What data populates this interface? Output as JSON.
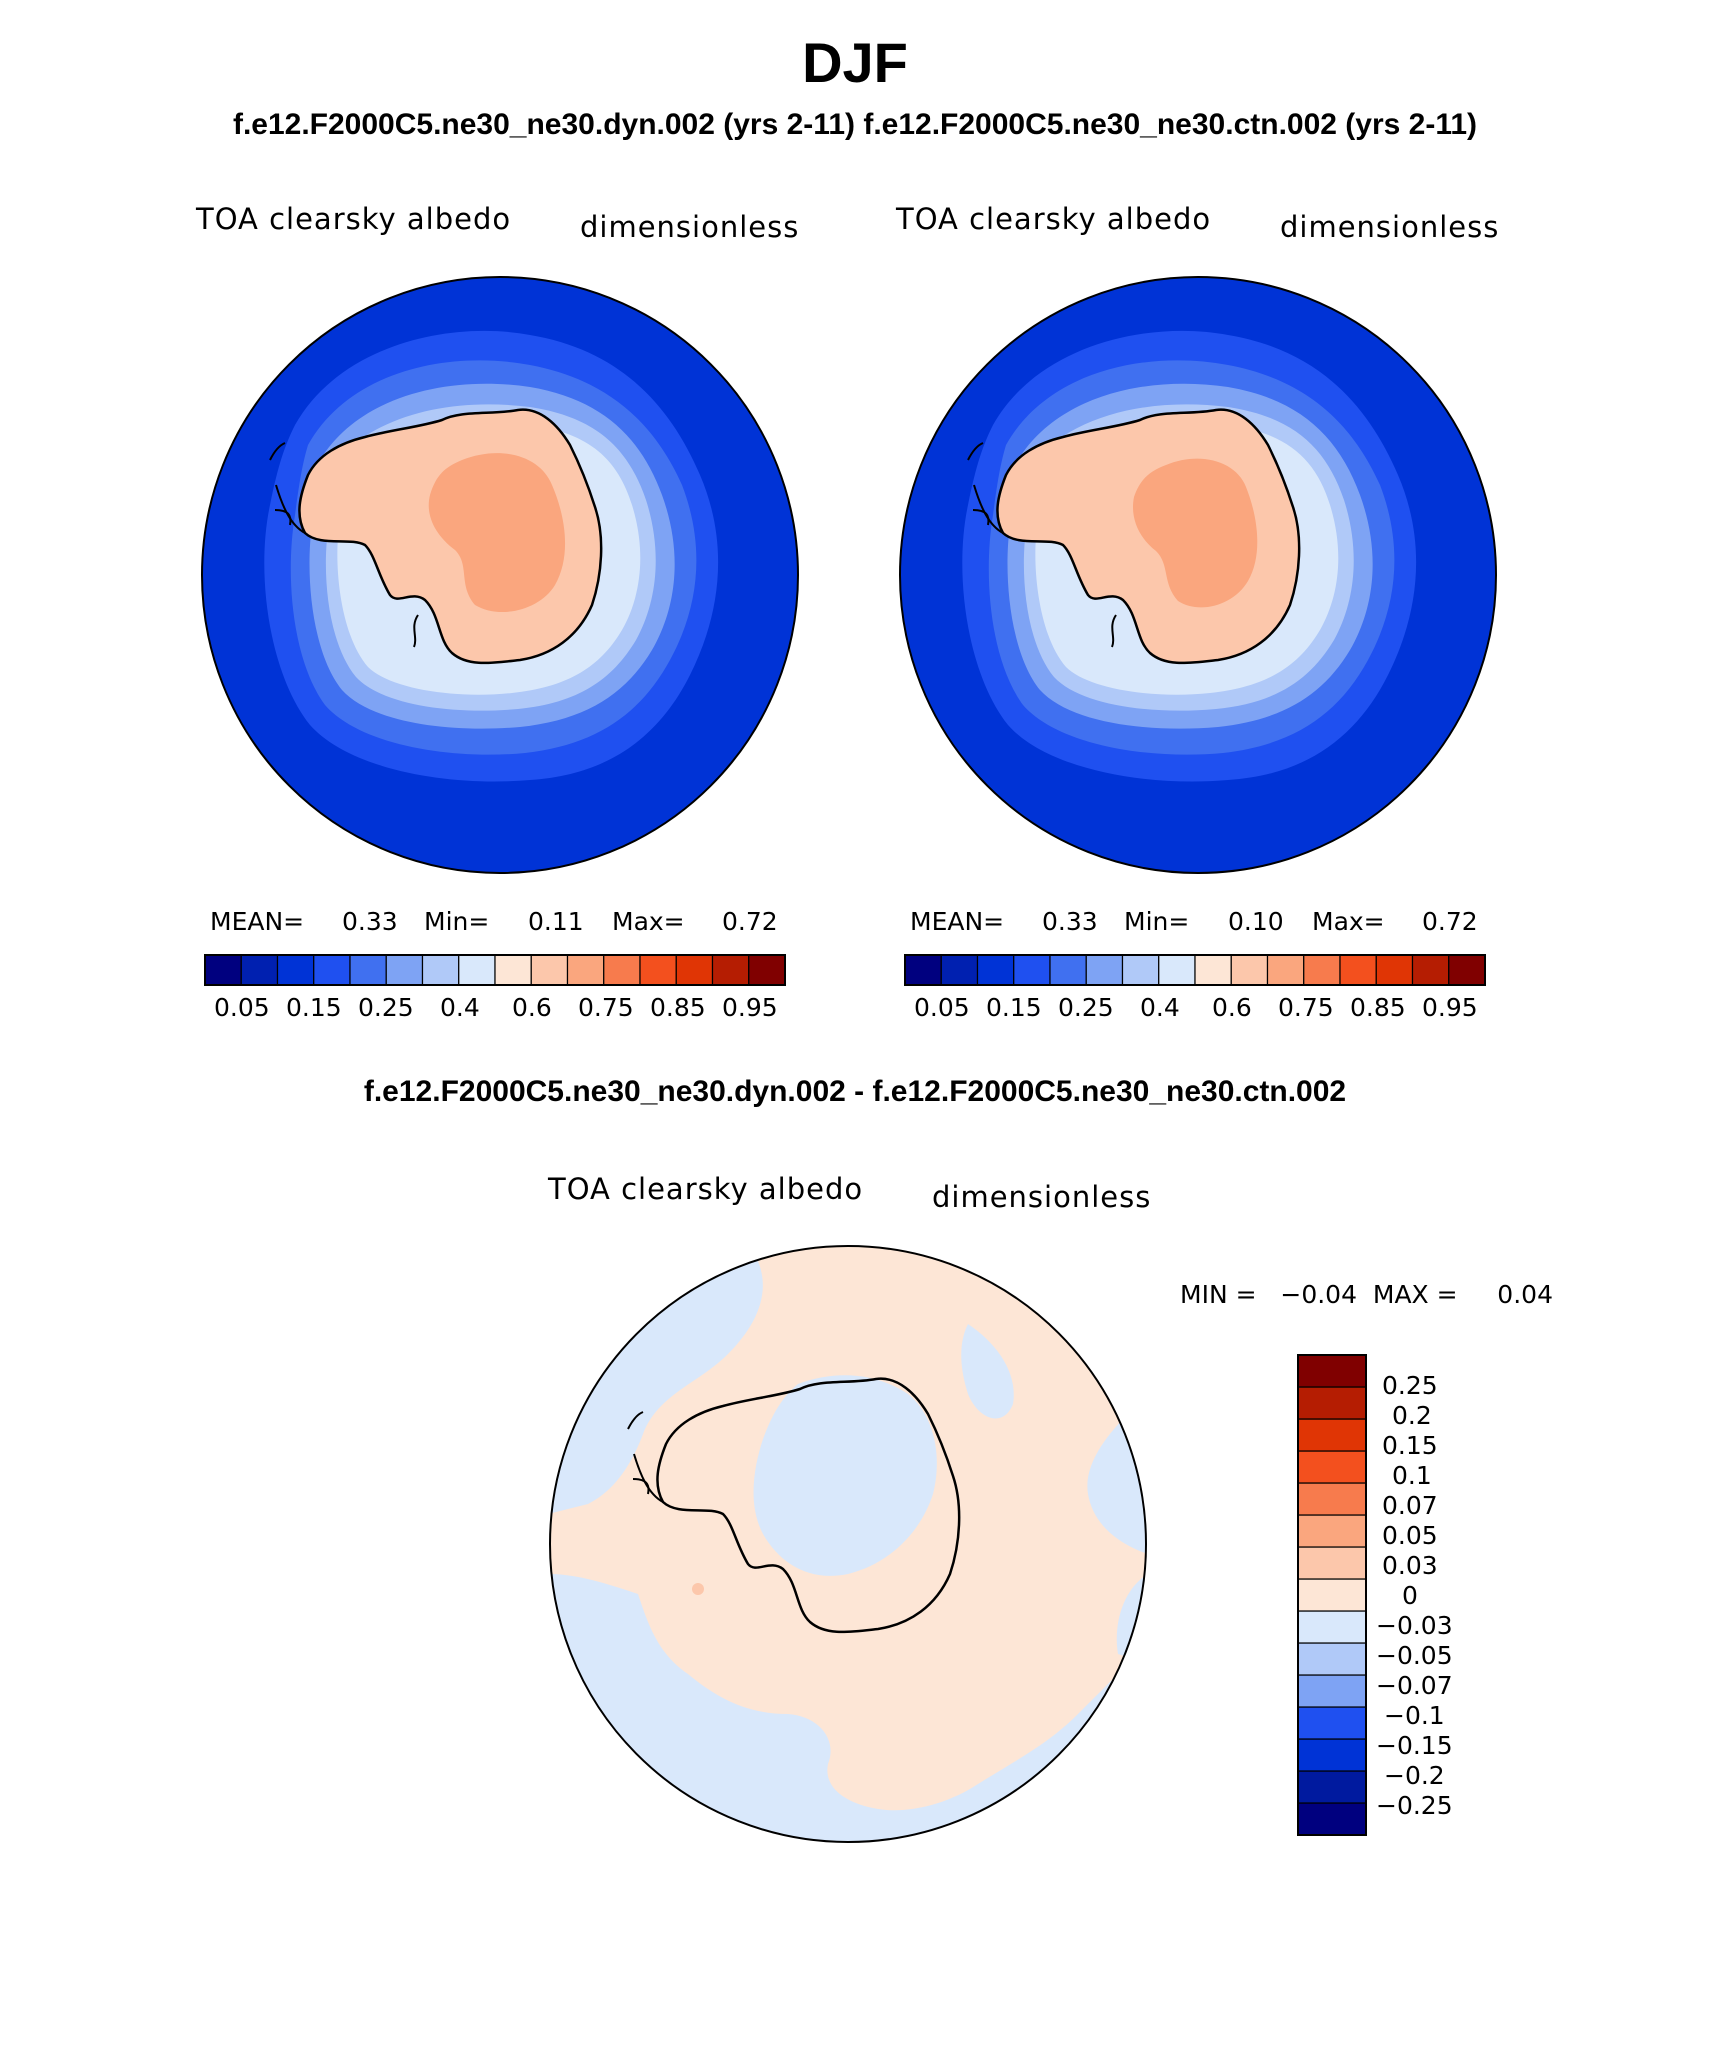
{
  "title": "DJF",
  "subtitle": "f.e12.F2000C5.ne30_ne30.dyn.002 (yrs 2-11)  f.e12.F2000C5.ne30_ne30.ctn.002 (yrs 2-11)",
  "diff_title": "f.e12.F2000C5.ne30_ne30.dyn.002 - f.e12.F2000C5.ne30_ne30.ctn.002",
  "colors": {
    "abs_scale": [
      "#00007f",
      "#0020b0",
      "#0033d6",
      "#1f50f0",
      "#4070f0",
      "#7ea3f4",
      "#b0c9f8",
      "#d9e8fb",
      "#fde6d6",
      "#fcc7ab",
      "#faa67e",
      "#f77b4d",
      "#f3501e",
      "#e03505",
      "#b51d02",
      "#800000"
    ],
    "diff_scale": [
      "#00007f",
      "#001a9f",
      "#0033d6",
      "#1f50f0",
      "#7ea3f4",
      "#b0c9f8",
      "#d9e8fb",
      "#fde6d6",
      "#fcc7ab",
      "#faa67e",
      "#f77b4d",
      "#f3501e",
      "#e03505",
      "#b51d02",
      "#800000"
    ]
  },
  "panels": [
    {
      "field": "TOA clearsky albedo",
      "units": "dimensionless",
      "stats": {
        "mean_label": "MEAN=",
        "mean": "0.33",
        "min_label": "Min=",
        "min": "0.11",
        "max_label": "Max=",
        "max": "0.72"
      },
      "colorbar_ticks": [
        "0.05",
        "0.15",
        "0.25",
        "0.4",
        "0.6",
        "0.75",
        "0.85",
        "0.95"
      ]
    },
    {
      "field": "TOA clearsky albedo",
      "units": "dimensionless",
      "stats": {
        "mean_label": "MEAN=",
        "mean": "0.33",
        "min_label": "Min=",
        "min": "0.10",
        "max_label": "Max=",
        "max": "0.72"
      },
      "colorbar_ticks": [
        "0.05",
        "0.15",
        "0.25",
        "0.4",
        "0.6",
        "0.75",
        "0.85",
        "0.95"
      ]
    }
  ],
  "diff_panel": {
    "field": "TOA clearsky albedo",
    "units": "dimensionless",
    "minmax": "MIN =   −0.04  MAX =     0.04",
    "colorbar_ticks": [
      "0.25",
      "0.2",
      "0.15",
      "0.1",
      "0.07",
      "0.05",
      "0.03",
      "0",
      "−0.03",
      "−0.05",
      "−0.07",
      "−0.1",
      "−0.15",
      "−0.2",
      "−0.25"
    ]
  }
}
